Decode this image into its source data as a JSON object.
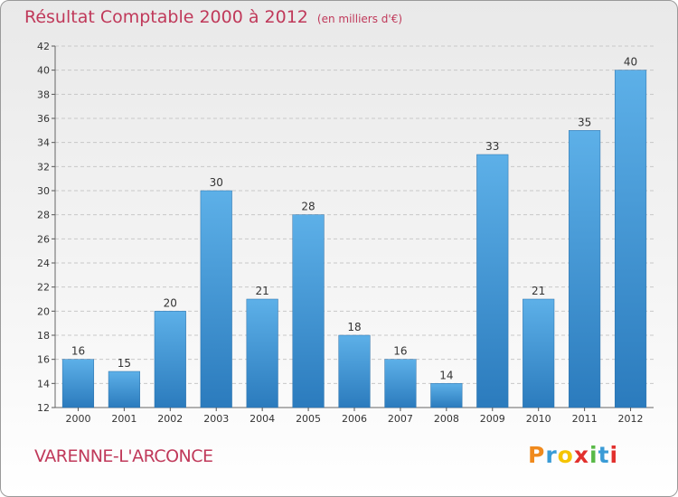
{
  "title": "Résultat Comptable 2000 à 2012",
  "title_unit": "(en milliers d'€)",
  "commune": "VARENNE-L'ARCONCE",
  "logo": {
    "letters": [
      "P",
      "r",
      "o",
      "x",
      "i",
      "t",
      "i"
    ],
    "colors": [
      "#f08a1d",
      "#3a9bd6",
      "#f5c400",
      "#e2302d",
      "#59b947",
      "#3a9bd6",
      "#e2302d"
    ]
  },
  "colors": {
    "bar_top": "#5db0e8",
    "bar_bottom": "#2b7bbd",
    "grid": "#c8c8c8",
    "axis_text": "#333333",
    "title": "#c0395a"
  },
  "chart_data": {
    "type": "bar",
    "title": "Résultat Comptable 2000 à 2012",
    "xlabel": "",
    "ylabel": "",
    "categories": [
      "2000",
      "2001",
      "2002",
      "2003",
      "2004",
      "2005",
      "2006",
      "2007",
      "2008",
      "2009",
      "2010",
      "2011",
      "2012"
    ],
    "values": [
      16,
      15,
      20,
      30,
      21,
      28,
      18,
      16,
      14,
      33,
      21,
      35,
      40
    ],
    "ylim": [
      12,
      42
    ],
    "yticks": [
      12,
      14,
      16,
      18,
      20,
      22,
      24,
      26,
      28,
      30,
      32,
      34,
      36,
      38,
      40,
      42
    ],
    "grid": true
  }
}
